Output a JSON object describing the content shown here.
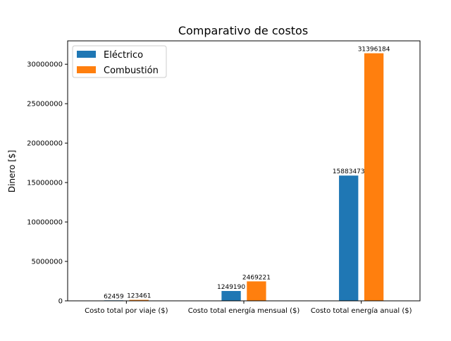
{
  "chart_data": {
    "type": "bar",
    "title": "Comparativo de costos",
    "xlabel": "",
    "ylabel": "Dinero [$]",
    "categories": [
      "Costo total por viaje ($)",
      "Costo total energía mensual ($)",
      "Costo total energía anual ($)"
    ],
    "series": [
      {
        "name": "Eléctrico",
        "color": "#1f77b4",
        "values": [
          62459,
          1249190,
          15883473
        ]
      },
      {
        "name": "Combustión",
        "color": "#ff7f0e",
        "values": [
          123461,
          2469221,
          31396184
        ]
      }
    ],
    "ylim": [
      0,
      32965993
    ],
    "yticks": [
      0,
      5000000,
      10000000,
      15000000,
      20000000,
      25000000,
      30000000
    ],
    "ytick_labels": [
      "0",
      "5000000",
      "10000000",
      "15000000",
      "20000000",
      "25000000",
      "30000000"
    ],
    "grid": false,
    "legend_position": "top-left"
  }
}
